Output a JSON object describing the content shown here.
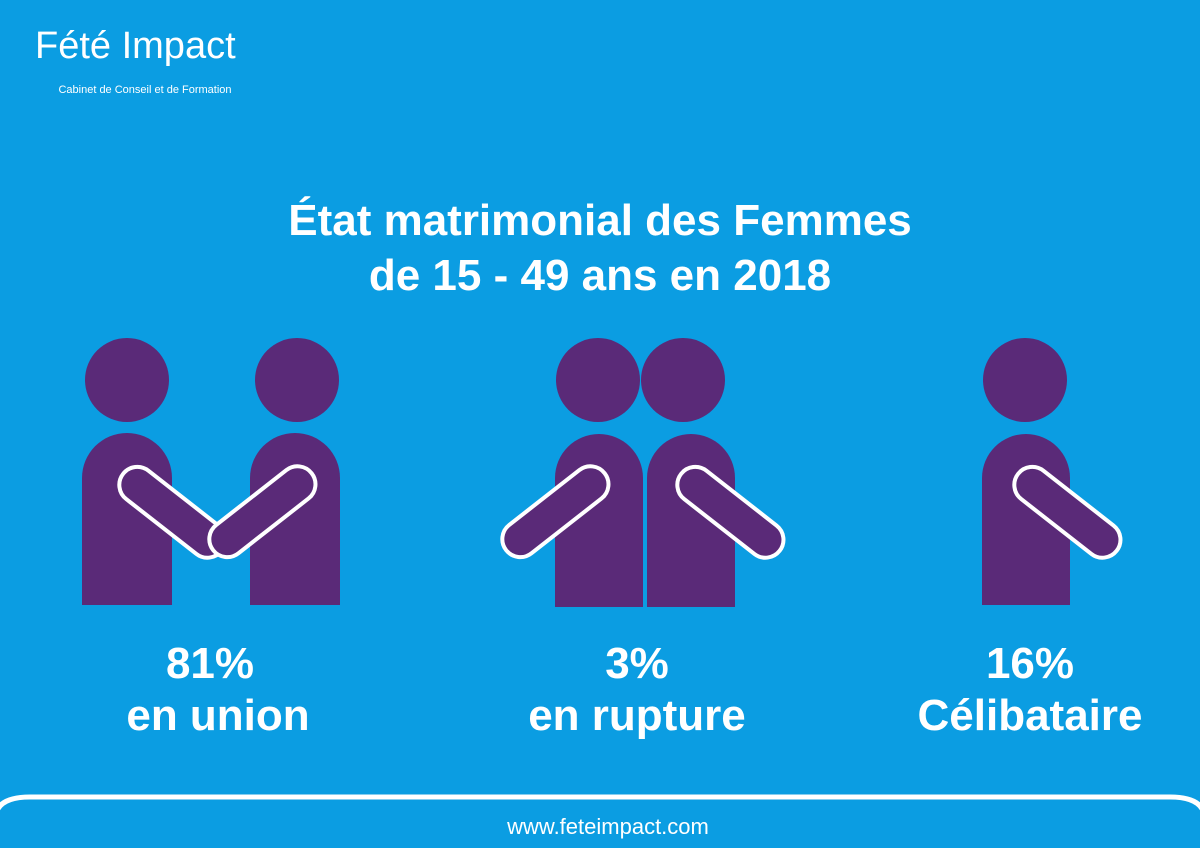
{
  "brand": {
    "name": "Fété Impact",
    "tagline": "Cabinet de Conseil et de Formation"
  },
  "title": {
    "line1": "État matrimonial des Femmes",
    "line2": "de 15 - 49 ans en 2018"
  },
  "items": [
    {
      "value": "81%",
      "label": "en union"
    },
    {
      "value": "3%",
      "label": "en rupture"
    },
    {
      "value": "16%",
      "label": "Célibataire"
    }
  ],
  "footer": {
    "url": "www.feteimpact.com"
  }
}
